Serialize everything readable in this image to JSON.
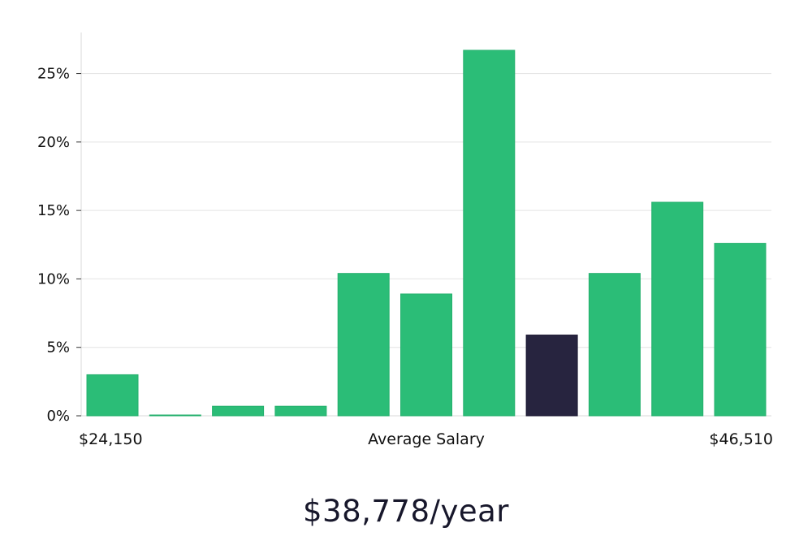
{
  "chart_data": {
    "type": "bar",
    "title": "",
    "xlabel": "Average Salary",
    "ylabel": "",
    "x_min_label": "$24,150",
    "x_max_label": "$46,510",
    "ylim": [
      0,
      28
    ],
    "yticks": [
      0,
      5,
      10,
      15,
      20,
      25
    ],
    "ytick_labels": [
      "0%",
      "5%",
      "10%",
      "15%",
      "20%",
      "25%"
    ],
    "values": [
      3.0,
      0.05,
      0.7,
      0.7,
      10.4,
      8.9,
      26.7,
      5.9,
      10.4,
      15.6,
      12.6
    ],
    "highlight_index": 7,
    "grid": true,
    "colors": {
      "bar": "#2bbd77",
      "highlight": "#27243f",
      "grid": "#e3e3e3",
      "axis": "#d9d9d9"
    }
  },
  "salary_summary": "$38,778/year"
}
